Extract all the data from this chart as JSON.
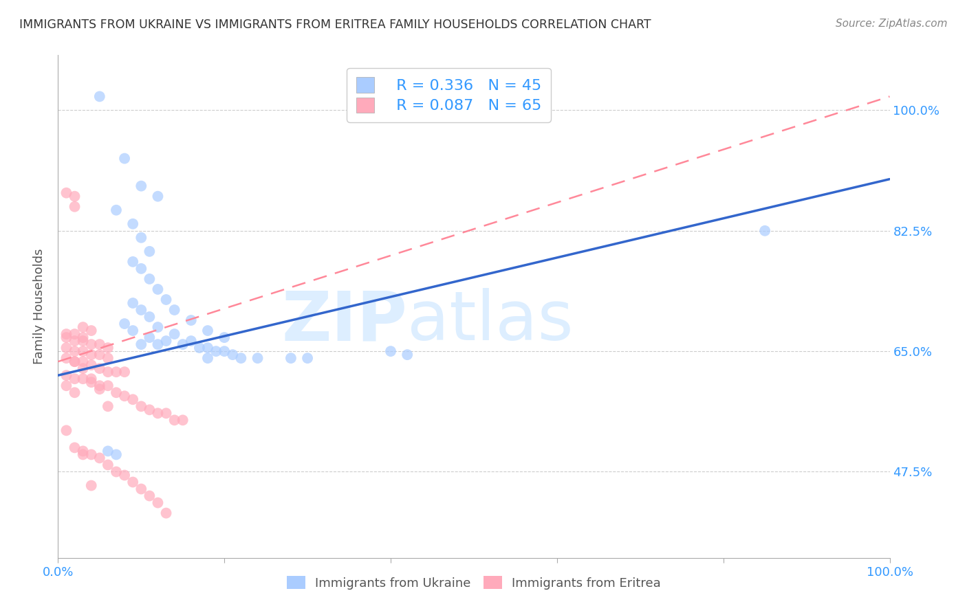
{
  "title": "IMMIGRANTS FROM UKRAINE VS IMMIGRANTS FROM ERITREA FAMILY HOUSEHOLDS CORRELATION CHART",
  "source": "Source: ZipAtlas.com",
  "ylabel": "Family Households",
  "y_tick_labels": [
    "47.5%",
    "65.0%",
    "82.5%",
    "100.0%"
  ],
  "y_tick_values": [
    0.475,
    0.65,
    0.825,
    1.0
  ],
  "xlim": [
    0.0,
    1.0
  ],
  "ylim": [
    0.35,
    1.08
  ],
  "color_ukraine": "#aaccff",
  "color_eritrea": "#ffaabb",
  "color_ukraine_line": "#3366cc",
  "color_eritrea_line": "#ff8899",
  "ukraine_scatter_x": [
    0.05,
    0.08,
    0.1,
    0.12,
    0.07,
    0.09,
    0.1,
    0.11,
    0.09,
    0.1,
    0.11,
    0.12,
    0.13,
    0.14,
    0.16,
    0.18,
    0.2,
    0.09,
    0.1,
    0.11,
    0.12,
    0.14,
    0.16,
    0.18,
    0.2,
    0.22,
    0.24,
    0.28,
    0.3,
    0.09,
    0.11,
    0.13,
    0.15,
    0.17,
    0.19,
    0.21,
    0.4,
    0.42,
    0.18,
    0.85,
    0.06,
    0.07,
    0.08,
    0.1,
    0.12
  ],
  "ukraine_scatter_y": [
    1.02,
    0.93,
    0.89,
    0.875,
    0.855,
    0.835,
    0.815,
    0.795,
    0.78,
    0.77,
    0.755,
    0.74,
    0.725,
    0.71,
    0.695,
    0.68,
    0.67,
    0.72,
    0.71,
    0.7,
    0.685,
    0.675,
    0.665,
    0.655,
    0.65,
    0.64,
    0.64,
    0.64,
    0.64,
    0.68,
    0.67,
    0.665,
    0.66,
    0.655,
    0.65,
    0.645,
    0.65,
    0.645,
    0.64,
    0.825,
    0.505,
    0.5,
    0.69,
    0.66,
    0.66
  ],
  "eritrea_scatter_x": [
    0.01,
    0.02,
    0.02,
    0.03,
    0.04,
    0.01,
    0.02,
    0.03,
    0.01,
    0.02,
    0.03,
    0.04,
    0.05,
    0.06,
    0.01,
    0.02,
    0.03,
    0.04,
    0.05,
    0.06,
    0.01,
    0.02,
    0.03,
    0.04,
    0.05,
    0.06,
    0.07,
    0.08,
    0.01,
    0.02,
    0.03,
    0.04,
    0.05,
    0.06,
    0.07,
    0.08,
    0.09,
    0.1,
    0.11,
    0.12,
    0.13,
    0.14,
    0.15,
    0.02,
    0.03,
    0.04,
    0.05,
    0.06,
    0.01,
    0.02,
    0.03,
    0.04,
    0.05,
    0.06,
    0.07,
    0.08,
    0.09,
    0.1,
    0.11,
    0.12,
    0.13,
    0.01,
    0.02,
    0.03,
    0.04
  ],
  "eritrea_scatter_y": [
    0.88,
    0.875,
    0.86,
    0.685,
    0.68,
    0.675,
    0.675,
    0.67,
    0.67,
    0.665,
    0.665,
    0.66,
    0.66,
    0.655,
    0.655,
    0.65,
    0.65,
    0.645,
    0.645,
    0.64,
    0.64,
    0.635,
    0.635,
    0.63,
    0.625,
    0.62,
    0.62,
    0.62,
    0.615,
    0.61,
    0.61,
    0.605,
    0.6,
    0.6,
    0.59,
    0.585,
    0.58,
    0.57,
    0.565,
    0.56,
    0.56,
    0.55,
    0.55,
    0.635,
    0.625,
    0.61,
    0.595,
    0.57,
    0.535,
    0.51,
    0.505,
    0.5,
    0.495,
    0.485,
    0.475,
    0.47,
    0.46,
    0.45,
    0.44,
    0.43,
    0.415,
    0.6,
    0.59,
    0.5,
    0.455
  ],
  "ukraine_line_x": [
    0.0,
    1.0
  ],
  "ukraine_line_y": [
    0.615,
    0.9
  ],
  "eritrea_line_x": [
    0.0,
    1.0
  ],
  "eritrea_line_y": [
    0.635,
    1.02
  ],
  "background_color": "#ffffff",
  "grid_color": "#cccccc",
  "legend_r_ukraine": "R = 0.336",
  "legend_n_ukraine": "N = 45",
  "legend_r_eritrea": "R = 0.087",
  "legend_n_eritrea": "N = 65",
  "legend_label_ukraine": "Immigrants from Ukraine",
  "legend_label_eritrea": "Immigrants from Eritrea"
}
